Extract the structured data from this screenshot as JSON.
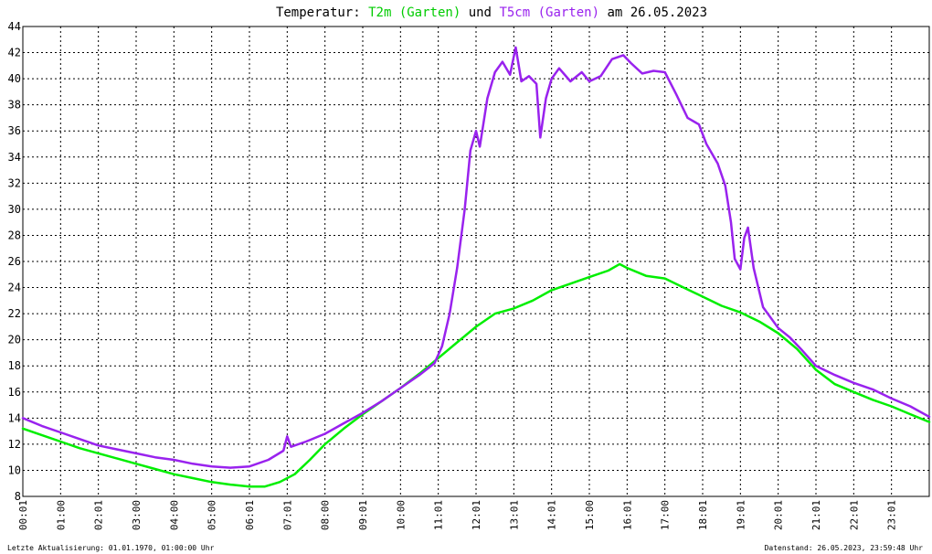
{
  "chart_data": {
    "type": "line",
    "title": {
      "prefix": "Temperatur:",
      "series1": "T2m (Garten)",
      "connector": "und",
      "series2": "T5cm (Garten)",
      "suffix": "am 26.05.2023"
    },
    "xlabel": "",
    "ylabel": "",
    "xlim": [
      0,
      24
    ],
    "ylim": [
      8,
      44
    ],
    "grid": true,
    "legend": "none",
    "x_tick_labels": [
      "00:01",
      "01:00",
      "02:01",
      "03:00",
      "04:00",
      "05:00",
      "06:01",
      "07:01",
      "08:00",
      "09:01",
      "10:00",
      "11:01",
      "12:01",
      "13:01",
      "14:01",
      "15:00",
      "16:01",
      "17:00",
      "18:01",
      "19:01",
      "20:01",
      "21:01",
      "22:01",
      "23:01"
    ],
    "y_ticks": [
      8,
      10,
      12,
      14,
      16,
      18,
      20,
      22,
      24,
      26,
      28,
      30,
      32,
      34,
      36,
      38,
      40,
      42,
      44
    ],
    "series": [
      {
        "name": "T2m (Garten)",
        "color": "#00ee00",
        "points": [
          [
            0,
            13.2
          ],
          [
            0.5,
            12.7
          ],
          [
            1,
            12.2
          ],
          [
            1.5,
            11.7
          ],
          [
            2,
            11.3
          ],
          [
            2.5,
            10.9
          ],
          [
            3,
            10.5
          ],
          [
            3.5,
            10.1
          ],
          [
            4,
            9.7
          ],
          [
            4.5,
            9.4
          ],
          [
            5,
            9.1
          ],
          [
            5.5,
            8.9
          ],
          [
            6,
            8.75
          ],
          [
            6.4,
            8.75
          ],
          [
            6.8,
            9.1
          ],
          [
            7.2,
            9.7
          ],
          [
            7.6,
            10.8
          ],
          [
            8,
            12.0
          ],
          [
            8.5,
            13.2
          ],
          [
            9,
            14.3
          ],
          [
            9.5,
            15.3
          ],
          [
            10,
            16.3
          ],
          [
            10.5,
            17.4
          ],
          [
            11,
            18.6
          ],
          [
            11.5,
            19.8
          ],
          [
            12,
            21.0
          ],
          [
            12.5,
            22.0
          ],
          [
            13,
            22.4
          ],
          [
            13.5,
            23.0
          ],
          [
            14,
            23.8
          ],
          [
            14.5,
            24.3
          ],
          [
            15,
            24.8
          ],
          [
            15.5,
            25.3
          ],
          [
            15.8,
            25.8
          ],
          [
            16,
            25.5
          ],
          [
            16.5,
            24.9
          ],
          [
            17,
            24.7
          ],
          [
            17.5,
            24.0
          ],
          [
            18,
            23.3
          ],
          [
            18.5,
            22.6
          ],
          [
            19,
            22.1
          ],
          [
            19.5,
            21.4
          ],
          [
            20,
            20.5
          ],
          [
            20.5,
            19.3
          ],
          [
            21,
            17.7
          ],
          [
            21.5,
            16.6
          ],
          [
            22,
            16.0
          ],
          [
            22.5,
            15.4
          ],
          [
            23,
            14.9
          ],
          [
            23.5,
            14.3
          ],
          [
            24,
            13.7
          ]
        ]
      },
      {
        "name": "T5cm (Garten)",
        "color": "#9922ee",
        "points": [
          [
            0,
            14.0
          ],
          [
            0.5,
            13.4
          ],
          [
            1,
            12.9
          ],
          [
            1.5,
            12.4
          ],
          [
            2,
            11.9
          ],
          [
            2.5,
            11.6
          ],
          [
            3,
            11.3
          ],
          [
            3.5,
            11.0
          ],
          [
            4,
            10.8
          ],
          [
            4.5,
            10.5
          ],
          [
            5,
            10.3
          ],
          [
            5.5,
            10.2
          ],
          [
            6,
            10.3
          ],
          [
            6.5,
            10.8
          ],
          [
            6.9,
            11.5
          ],
          [
            7.0,
            12.6
          ],
          [
            7.1,
            11.8
          ],
          [
            7.5,
            12.2
          ],
          [
            8,
            12.8
          ],
          [
            8.5,
            13.6
          ],
          [
            9,
            14.4
          ],
          [
            9.5,
            15.3
          ],
          [
            10,
            16.3
          ],
          [
            10.5,
            17.3
          ],
          [
            10.9,
            18.2
          ],
          [
            11.1,
            19.5
          ],
          [
            11.3,
            22.0
          ],
          [
            11.5,
            25.5
          ],
          [
            11.7,
            30.0
          ],
          [
            11.85,
            34.5
          ],
          [
            12,
            36.0
          ],
          [
            12.1,
            34.8
          ],
          [
            12.3,
            38.5
          ],
          [
            12.5,
            40.5
          ],
          [
            12.7,
            41.3
          ],
          [
            12.9,
            40.3
          ],
          [
            13.05,
            42.4
          ],
          [
            13.2,
            39.8
          ],
          [
            13.4,
            40.2
          ],
          [
            13.6,
            39.6
          ],
          [
            13.7,
            35.5
          ],
          [
            13.85,
            38.5
          ],
          [
            14,
            40.0
          ],
          [
            14.2,
            40.8
          ],
          [
            14.5,
            39.8
          ],
          [
            14.8,
            40.5
          ],
          [
            15,
            39.8
          ],
          [
            15.3,
            40.2
          ],
          [
            15.6,
            41.5
          ],
          [
            15.9,
            41.8
          ],
          [
            16.1,
            41.2
          ],
          [
            16.4,
            40.4
          ],
          [
            16.7,
            40.6
          ],
          [
            17,
            40.5
          ],
          [
            17.3,
            38.8
          ],
          [
            17.6,
            37.0
          ],
          [
            17.9,
            36.5
          ],
          [
            18.1,
            35.0
          ],
          [
            18.4,
            33.5
          ],
          [
            18.6,
            31.8
          ],
          [
            18.75,
            29.0
          ],
          [
            18.85,
            26.2
          ],
          [
            19.0,
            25.4
          ],
          [
            19.1,
            27.8
          ],
          [
            19.2,
            28.6
          ],
          [
            19.35,
            25.5
          ],
          [
            19.6,
            22.5
          ],
          [
            20,
            20.9
          ],
          [
            20.3,
            20.2
          ],
          [
            20.6,
            19.3
          ],
          [
            21,
            18.0
          ],
          [
            21.5,
            17.3
          ],
          [
            22,
            16.7
          ],
          [
            22.5,
            16.2
          ],
          [
            23,
            15.5
          ],
          [
            23.5,
            14.9
          ],
          [
            24,
            14.1
          ]
        ]
      }
    ]
  },
  "footer": {
    "left": "Letzte Aktualisierung: 01.01.1970, 01:00:00 Uhr",
    "right": "Datenstand: 26.05.2023, 23:59:48 Uhr"
  }
}
